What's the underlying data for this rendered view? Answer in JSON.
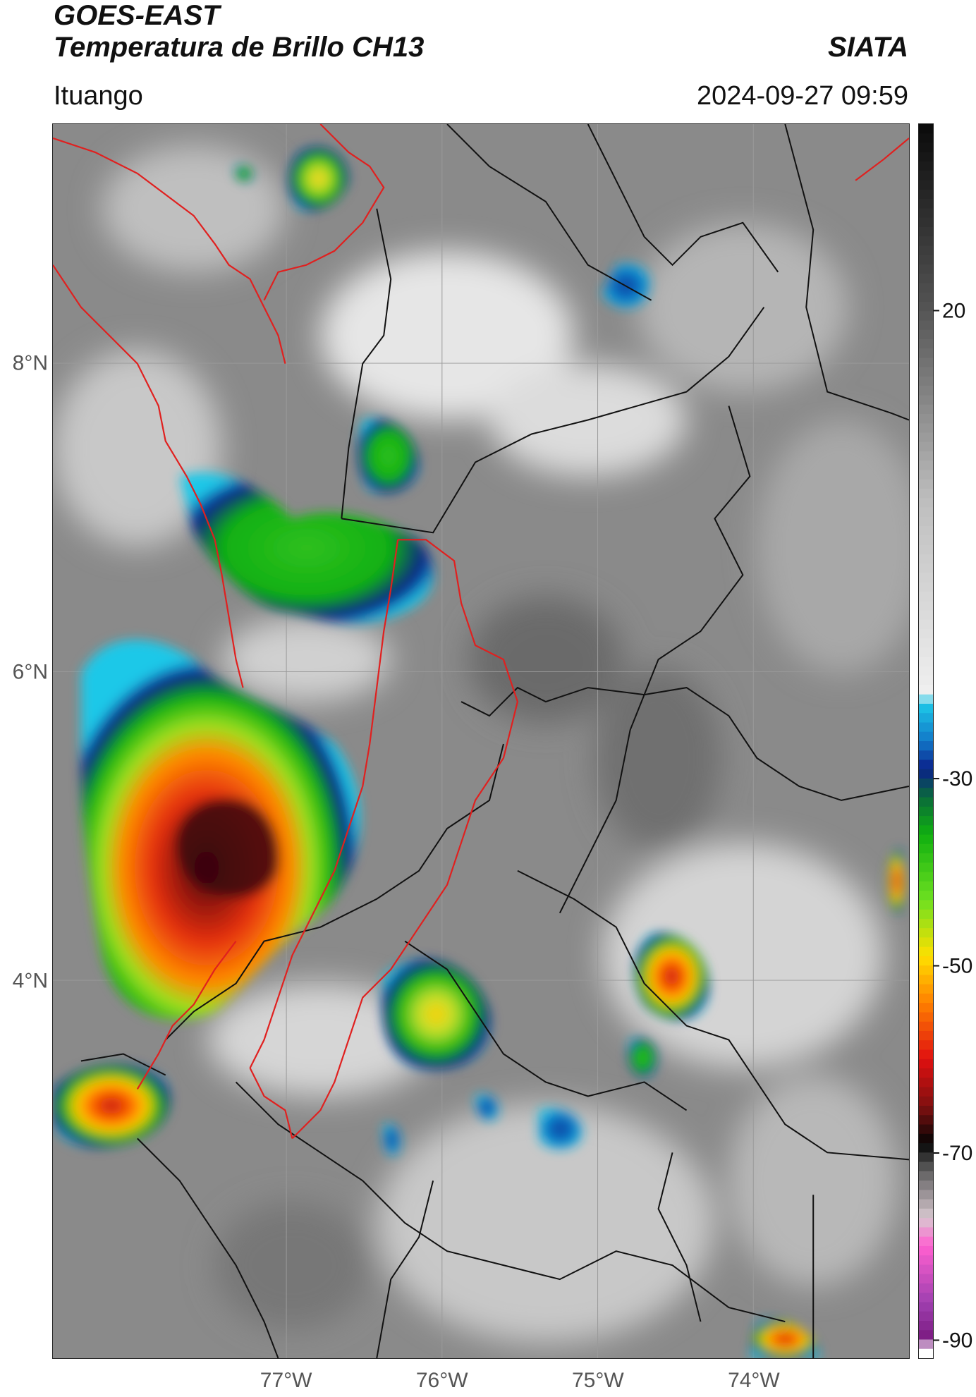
{
  "header": {
    "line1": "GOES-EAST",
    "line2": "Temperatura de Brillo CH13",
    "source": "SIATA",
    "location": "Ituango",
    "datetime": "2024-09-27 09:59"
  },
  "map": {
    "lon_range": [
      -78.5,
      -73.0
    ],
    "lat_range": [
      1.55,
      9.55
    ],
    "lat_ticks": [
      {
        "value": 8,
        "label": "8°N"
      },
      {
        "value": 6,
        "label": "6°N"
      },
      {
        "value": 4,
        "label": "4°N"
      }
    ],
    "lon_ticks": [
      {
        "value": -77,
        "label": "77°W"
      },
      {
        "value": -76,
        "label": "76°W"
      },
      {
        "value": -75,
        "label": "75°W"
      },
      {
        "value": -74,
        "label": "74°W"
      }
    ],
    "grid": true,
    "colors": {
      "country_border": "#e0201f",
      "admin_border": "#111111",
      "gridline": "#9a9a9a"
    }
  },
  "colorbar": {
    "range": [
      -92,
      40
    ],
    "ticks": [
      {
        "value": 20,
        "label": "20"
      },
      {
        "value": -30,
        "label": "-30"
      },
      {
        "value": -50,
        "label": "-50"
      },
      {
        "value": -70,
        "label": "-70"
      },
      {
        "value": -90,
        "label": "-90"
      }
    ],
    "stops": [
      {
        "value": 40,
        "color": "#0a0a0a"
      },
      {
        "value": 20,
        "color": "#555555"
      },
      {
        "value": 0,
        "color": "#bdbdbd"
      },
      {
        "value": -21,
        "color": "#f0f0f0"
      },
      {
        "value": -22,
        "color": "#1ec8e8"
      },
      {
        "value": -26,
        "color": "#1178c8"
      },
      {
        "value": -29,
        "color": "#0a1f8a"
      },
      {
        "value": -32,
        "color": "#0a6a3a"
      },
      {
        "value": -36,
        "color": "#10b010"
      },
      {
        "value": -43,
        "color": "#6ee020"
      },
      {
        "value": -49,
        "color": "#ffe000"
      },
      {
        "value": -54,
        "color": "#ff8000"
      },
      {
        "value": -60,
        "color": "#e01010"
      },
      {
        "value": -65,
        "color": "#801010"
      },
      {
        "value": -69,
        "color": "#050505"
      },
      {
        "value": -72,
        "color": "#606060"
      },
      {
        "value": -77,
        "color": "#d8c8d0"
      },
      {
        "value": -80,
        "color": "#ff60d0"
      },
      {
        "value": -86,
        "color": "#a040b0"
      },
      {
        "value": -90,
        "color": "#7a1a80"
      },
      {
        "value": -91,
        "color": "#ffffff"
      }
    ]
  }
}
